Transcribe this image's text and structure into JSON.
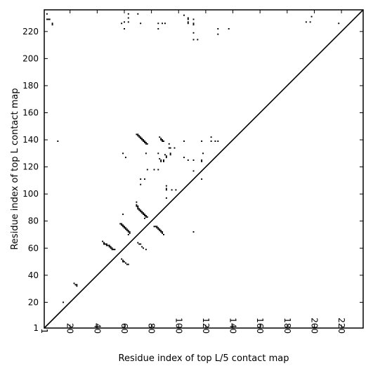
{
  "chart_data": {
    "type": "scatter",
    "title": "",
    "xlabel": "Residue index of top L/5 contact map",
    "ylabel": "Residue index of top L contact map",
    "xlim": [
      1,
      236
    ],
    "ylim": [
      1,
      236
    ],
    "x_ticks": [
      1,
      20,
      40,
      60,
      80,
      100,
      120,
      140,
      160,
      180,
      200,
      220
    ],
    "y_ticks": [
      1,
      20,
      40,
      60,
      80,
      100,
      120,
      140,
      160,
      180,
      200,
      220
    ],
    "x_tick_rotation": -90,
    "grid": false,
    "legend": "none",
    "marker": "square",
    "marker_color": "#000000",
    "diagonal_line": {
      "from": [
        1,
        1
      ],
      "to": [
        236,
        236
      ],
      "color": "#000000"
    },
    "points": [
      [
        3,
        233
      ],
      [
        3,
        229
      ],
      [
        4,
        229
      ],
      [
        5,
        229
      ],
      [
        7,
        226
      ],
      [
        7,
        225
      ],
      [
        11,
        139
      ],
      [
        15,
        20
      ],
      [
        23,
        34
      ],
      [
        24,
        33
      ],
      [
        25,
        33
      ],
      [
        25,
        32
      ],
      [
        44,
        65
      ],
      [
        45,
        64
      ],
      [
        45,
        63
      ],
      [
        46,
        63
      ],
      [
        47,
        63
      ],
      [
        47,
        62
      ],
      [
        48,
        62
      ],
      [
        49,
        62
      ],
      [
        49,
        61
      ],
      [
        50,
        61
      ],
      [
        50,
        60
      ],
      [
        51,
        60
      ],
      [
        51,
        59
      ],
      [
        52,
        59
      ],
      [
        53,
        59
      ],
      [
        57,
        78
      ],
      [
        58,
        78
      ],
      [
        58,
        77
      ],
      [
        59,
        77
      ],
      [
        59,
        76
      ],
      [
        60,
        76
      ],
      [
        60,
        75
      ],
      [
        61,
        75
      ],
      [
        61,
        74
      ],
      [
        62,
        74
      ],
      [
        62,
        73
      ],
      [
        63,
        73
      ],
      [
        63,
        72
      ],
      [
        64,
        72
      ],
      [
        64,
        71
      ],
      [
        63,
        70
      ],
      [
        58,
        52
      ],
      [
        59,
        51
      ],
      [
        59,
        50
      ],
      [
        60,
        50
      ],
      [
        61,
        49
      ],
      [
        62,
        48
      ],
      [
        63,
        48
      ],
      [
        59,
        85
      ],
      [
        59,
        130
      ],
      [
        61,
        127
      ],
      [
        58,
        226
      ],
      [
        60,
        227
      ],
      [
        60,
        222
      ],
      [
        63,
        233
      ],
      [
        63,
        230
      ],
      [
        63,
        227
      ],
      [
        69,
        92
      ],
      [
        69,
        91
      ],
      [
        70,
        91
      ],
      [
        70,
        90
      ],
      [
        70,
        89
      ],
      [
        71,
        89
      ],
      [
        71,
        88
      ],
      [
        72,
        88
      ],
      [
        72,
        87
      ],
      [
        73,
        87
      ],
      [
        73,
        86
      ],
      [
        74,
        86
      ],
      [
        74,
        85
      ],
      [
        75,
        85
      ],
      [
        75,
        84
      ],
      [
        76,
        84
      ],
      [
        76,
        83
      ],
      [
        77,
        83
      ],
      [
        75,
        82
      ],
      [
        69,
        94
      ],
      [
        70,
        64
      ],
      [
        71,
        63
      ],
      [
        72,
        63
      ],
      [
        73,
        61
      ],
      [
        74,
        60
      ],
      [
        76,
        59
      ],
      [
        69,
        144
      ],
      [
        70,
        144
      ],
      [
        70,
        143
      ],
      [
        71,
        143
      ],
      [
        71,
        142
      ],
      [
        72,
        142
      ],
      [
        72,
        141
      ],
      [
        73,
        141
      ],
      [
        73,
        140
      ],
      [
        74,
        140
      ],
      [
        74,
        139
      ],
      [
        75,
        139
      ],
      [
        75,
        138
      ],
      [
        76,
        138
      ],
      [
        76,
        137
      ],
      [
        77,
        137
      ],
      [
        72,
        111
      ],
      [
        72,
        107
      ],
      [
        75,
        111
      ],
      [
        76,
        130
      ],
      [
        77,
        118
      ],
      [
        70,
        233
      ],
      [
        72,
        226
      ],
      [
        82,
        76
      ],
      [
        83,
        76
      ],
      [
        84,
        76
      ],
      [
        84,
        75
      ],
      [
        85,
        75
      ],
      [
        85,
        74
      ],
      [
        86,
        74
      ],
      [
        86,
        73
      ],
      [
        87,
        73
      ],
      [
        87,
        72
      ],
      [
        88,
        72
      ],
      [
        88,
        71
      ],
      [
        89,
        70
      ],
      [
        82,
        118
      ],
      [
        85,
        118
      ],
      [
        85,
        130
      ],
      [
        86,
        142
      ],
      [
        87,
        141
      ],
      [
        87,
        140
      ],
      [
        88,
        140
      ],
      [
        88,
        139
      ],
      [
        89,
        139
      ],
      [
        86,
        126
      ],
      [
        87,
        125
      ],
      [
        87,
        124
      ],
      [
        89,
        125
      ],
      [
        89,
        124
      ],
      [
        90,
        129
      ],
      [
        91,
        128
      ],
      [
        91,
        127
      ],
      [
        91,
        106
      ],
      [
        91,
        104
      ],
      [
        91,
        103
      ],
      [
        91,
        97
      ],
      [
        93,
        137
      ],
      [
        93,
        134
      ],
      [
        94,
        134
      ],
      [
        94,
        130
      ],
      [
        94,
        129
      ],
      [
        95,
        103
      ],
      [
        97,
        134
      ],
      [
        98,
        103
      ],
      [
        85,
        226
      ],
      [
        85,
        222
      ],
      [
        88,
        226
      ],
      [
        90,
        226
      ],
      [
        104,
        232
      ],
      [
        104,
        139
      ],
      [
        104,
        127
      ],
      [
        107,
        230
      ],
      [
        107,
        229
      ],
      [
        107,
        227
      ],
      [
        107,
        226
      ],
      [
        107,
        125
      ],
      [
        111,
        229
      ],
      [
        111,
        226
      ],
      [
        111,
        225
      ],
      [
        111,
        219
      ],
      [
        111,
        214
      ],
      [
        111,
        125
      ],
      [
        111,
        117
      ],
      [
        111,
        72
      ],
      [
        114,
        214
      ],
      [
        117,
        139
      ],
      [
        117,
        125
      ],
      [
        117,
        124
      ],
      [
        117,
        111
      ],
      [
        118,
        130
      ],
      [
        124,
        142
      ],
      [
        124,
        139
      ],
      [
        127,
        139
      ],
      [
        129,
        222
      ],
      [
        129,
        218
      ],
      [
        129,
        139
      ],
      [
        137,
        222
      ],
      [
        194,
        227
      ],
      [
        197,
        227
      ],
      [
        198,
        231
      ],
      [
        218,
        226
      ]
    ]
  }
}
